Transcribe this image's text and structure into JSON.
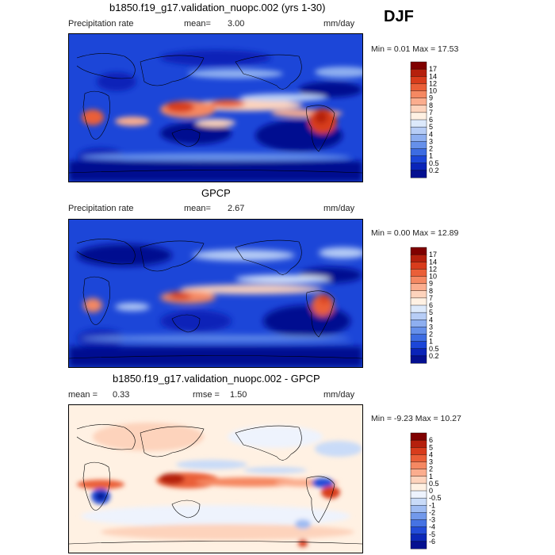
{
  "season": "DJF",
  "panels": [
    {
      "title": "b1850.f19_g17.validation_nuopc.002 (yrs 1-30)",
      "left_label": "Precipitation rate",
      "mean_label": "mean=",
      "mean_value": "3.00",
      "units": "mm/day",
      "stats": "Min =   0.01 Max =  17.53",
      "levels": [
        "17",
        "14",
        "12",
        "10",
        "9",
        "8",
        "7",
        "6",
        "5",
        "4",
        "3",
        "2",
        "1",
        "0.5",
        "0.2"
      ],
      "colors": [
        "#800000",
        "#b5200d",
        "#d83c1c",
        "#ea5f38",
        "#f58862",
        "#fbad8e",
        "#fdd3bc",
        "#fff1e3",
        "#dce9fb",
        "#b7cdf6",
        "#8eaff0",
        "#6690ea",
        "#3d6ce2",
        "#1c46d8",
        "#0a24b8",
        "#041090"
      ]
    },
    {
      "title": "GPCP",
      "left_label": "Precipitation rate",
      "mean_label": "mean=",
      "mean_value": "2.67",
      "units": "mm/day",
      "stats": "Min =   0.00 Max =  12.89",
      "levels": [
        "17",
        "14",
        "12",
        "10",
        "9",
        "8",
        "7",
        "6",
        "5",
        "4",
        "3",
        "2",
        "1",
        "0.5",
        "0.2"
      ],
      "colors": [
        "#800000",
        "#b5200d",
        "#d83c1c",
        "#ea5f38",
        "#f58862",
        "#fbad8e",
        "#fdd3bc",
        "#fff1e3",
        "#dce9fb",
        "#b7cdf6",
        "#8eaff0",
        "#6690ea",
        "#3d6ce2",
        "#1c46d8",
        "#0a24b8",
        "#041090"
      ]
    },
    {
      "title": "b1850.f19_g17.validation_nuopc.002 - GPCP",
      "mean_label": "mean =",
      "mean_value": "0.33",
      "rmse_label": "rmse =",
      "rmse_value": "1.50",
      "units": "mm/day",
      "stats": "Min =  -9.23 Max =  10.27",
      "levels": [
        "6",
        "5",
        "4",
        "3",
        "2",
        "1",
        "0.5",
        "0",
        "-0.5",
        "-1",
        "-2",
        "-3",
        "-4",
        "-5",
        "-6"
      ],
      "colors": [
        "#800000",
        "#b5200d",
        "#d83c1c",
        "#ea5f38",
        "#f58862",
        "#fbad8e",
        "#fdd3bc",
        "#fff1e3",
        "#eef3fd",
        "#c9dbf8",
        "#9fbcf2",
        "#7299eb",
        "#4673e3",
        "#234cd8",
        "#0c28b8",
        "#041090"
      ]
    }
  ]
}
